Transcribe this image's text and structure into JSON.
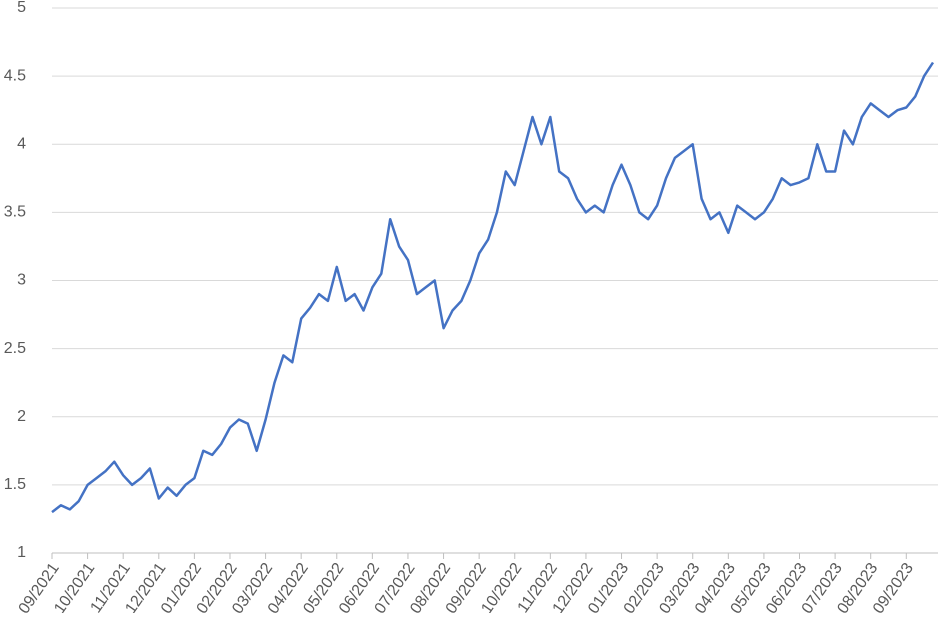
{
  "chart_data": {
    "type": "line",
    "categories": [
      "09/2021",
      null,
      null,
      null,
      "10/2021",
      null,
      null,
      null,
      "11/2021",
      null,
      null,
      null,
      "12/2021",
      null,
      null,
      null,
      "01/2022",
      null,
      null,
      null,
      "02/2022",
      null,
      null,
      null,
      "03/2022",
      null,
      null,
      null,
      "04/2022",
      null,
      null,
      null,
      "05/2022",
      null,
      null,
      null,
      "06/2022",
      null,
      null,
      null,
      "07/2022",
      null,
      null,
      null,
      "08/2022",
      null,
      null,
      null,
      "09/2022",
      null,
      null,
      null,
      "10/2022",
      null,
      null,
      null,
      "11/2022",
      null,
      null,
      null,
      "12/2022",
      null,
      null,
      null,
      "01/2023",
      null,
      null,
      null,
      "02/2023",
      null,
      null,
      null,
      "03/2023",
      null,
      null,
      null,
      "04/2023",
      null,
      null,
      null,
      "05/2023",
      null,
      null,
      null,
      "06/2023",
      null,
      null,
      null,
      "07/2023",
      null,
      null,
      null,
      "08/2023",
      null,
      null,
      null,
      "09/2023",
      null,
      null,
      null
    ],
    "series": [
      {
        "color": "#4472c4",
        "values": [
          1.3,
          1.35,
          1.32,
          1.38,
          1.5,
          1.55,
          1.6,
          1.67,
          1.57,
          1.5,
          1.55,
          1.62,
          1.4,
          1.48,
          1.42,
          1.5,
          1.55,
          1.75,
          1.72,
          1.8,
          1.92,
          1.98,
          1.95,
          1.75,
          1.98,
          2.25,
          2.45,
          2.4,
          2.72,
          2.8,
          2.9,
          2.85,
          3.1,
          2.85,
          2.9,
          2.78,
          2.95,
          3.05,
          3.45,
          3.25,
          3.15,
          2.9,
          2.95,
          3.0,
          2.65,
          2.78,
          2.85,
          3.0,
          3.2,
          3.3,
          3.5,
          3.8,
          3.7,
          3.95,
          4.2,
          4.0,
          4.2,
          3.8,
          3.75,
          3.6,
          3.5,
          3.55,
          3.5,
          3.7,
          3.85,
          3.7,
          3.5,
          3.45,
          3.55,
          3.75,
          3.9,
          3.95,
          4.0,
          3.6,
          3.45,
          3.5,
          3.35,
          3.55,
          3.5,
          3.45,
          3.5,
          3.6,
          3.75,
          3.7,
          3.72,
          3.75,
          4.0,
          3.8,
          3.8,
          4.1,
          4.0,
          4.2,
          4.3,
          4.25,
          4.2,
          4.25,
          4.27,
          4.35,
          4.5,
          4.6
        ]
      }
    ],
    "ylim": [
      1,
      5
    ],
    "yticks": [
      1,
      1.5,
      2,
      2.5,
      3,
      3.5,
      4,
      4.5,
      5
    ],
    "grid": true
  }
}
